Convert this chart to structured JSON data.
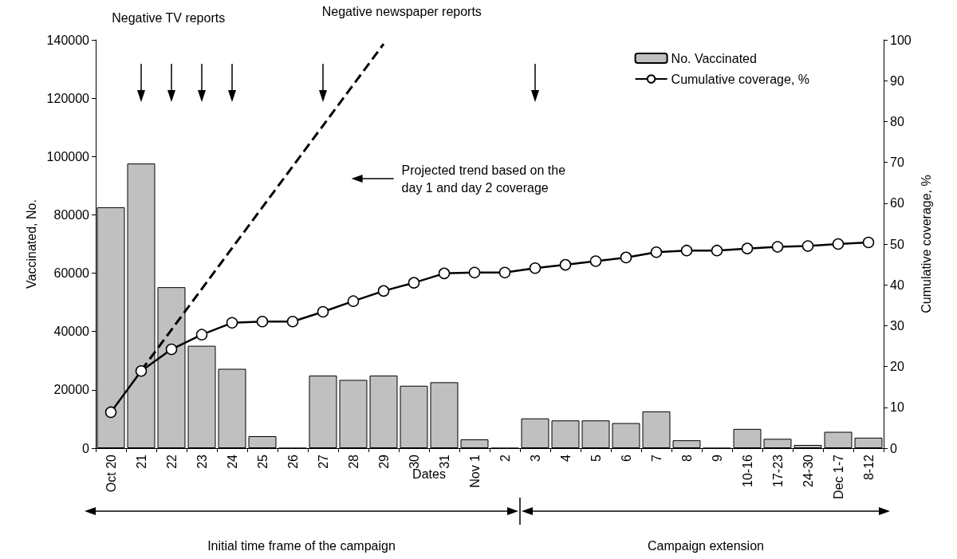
{
  "chart_data": {
    "type": "bar",
    "xlabel": "Dates",
    "ylabel": "Vaccinated, No.",
    "y2label": "Cumulative coverage, %",
    "categories": [
      "Oct 20",
      "21",
      "22",
      "23",
      "24",
      "25",
      "26",
      "27",
      "28",
      "29",
      "30",
      "31",
      "Nov 1",
      "2",
      "3",
      "4",
      "5",
      "6",
      "7",
      "8",
      "9",
      "10-16",
      "17-23",
      "24-30",
      "Dec 1-7",
      "8-12"
    ],
    "series": [
      {
        "name": "No. Vaccinated",
        "color": "#c0c0c0",
        "values": [
          82600,
          97600,
          55200,
          35100,
          27200,
          4100,
          0,
          24900,
          23400,
          24900,
          21400,
          22600,
          3000,
          0,
          10200,
          9500,
          9500,
          8600,
          12600,
          2700,
          0,
          6600,
          3200,
          1100,
          5600,
          3600
        ]
      },
      {
        "name": "Cumulative coverage, %",
        "type": "line",
        "axis": "y2",
        "color": "#000000",
        "marker": "circle",
        "line_style": "solid",
        "values": [
          8.8,
          18.9,
          24.2,
          27.8,
          30.7,
          31.0,
          31.0,
          33.4,
          36.0,
          38.5,
          40.5,
          42.8,
          43.0,
          43.0,
          44.1,
          44.9,
          45.8,
          46.7,
          48.0,
          48.4,
          48.4,
          48.9,
          49.3,
          49.5,
          50.0,
          50.4
        ]
      },
      {
        "type": "line",
        "axis": "y2",
        "color": "#000000",
        "marker": "none",
        "line_style": "dashed",
        "x": [
          "21",
          "22",
          "23",
          "24",
          "25",
          "26",
          "27",
          "28",
          "29"
        ],
        "values": [
          19,
          29,
          39,
          49,
          59,
          69,
          79,
          89,
          99
        ]
      }
    ],
    "ylim": [
      0,
      140000
    ],
    "yticks": [
      0,
      20000,
      40000,
      60000,
      80000,
      100000,
      120000,
      140000
    ],
    "y2lim": [
      0,
      100
    ],
    "y2ticks": [
      0,
      10,
      20,
      30,
      40,
      50,
      60,
      70,
      80,
      90,
      100
    ],
    "grid": false,
    "legend": "top right",
    "annotations": [
      "Negative TV reports",
      "Negative newspaper reports",
      "Projected trend based on the\nday 1 and day 2 coverage",
      "Initial time frame of the campaign",
      "Campaign extension"
    ]
  }
}
